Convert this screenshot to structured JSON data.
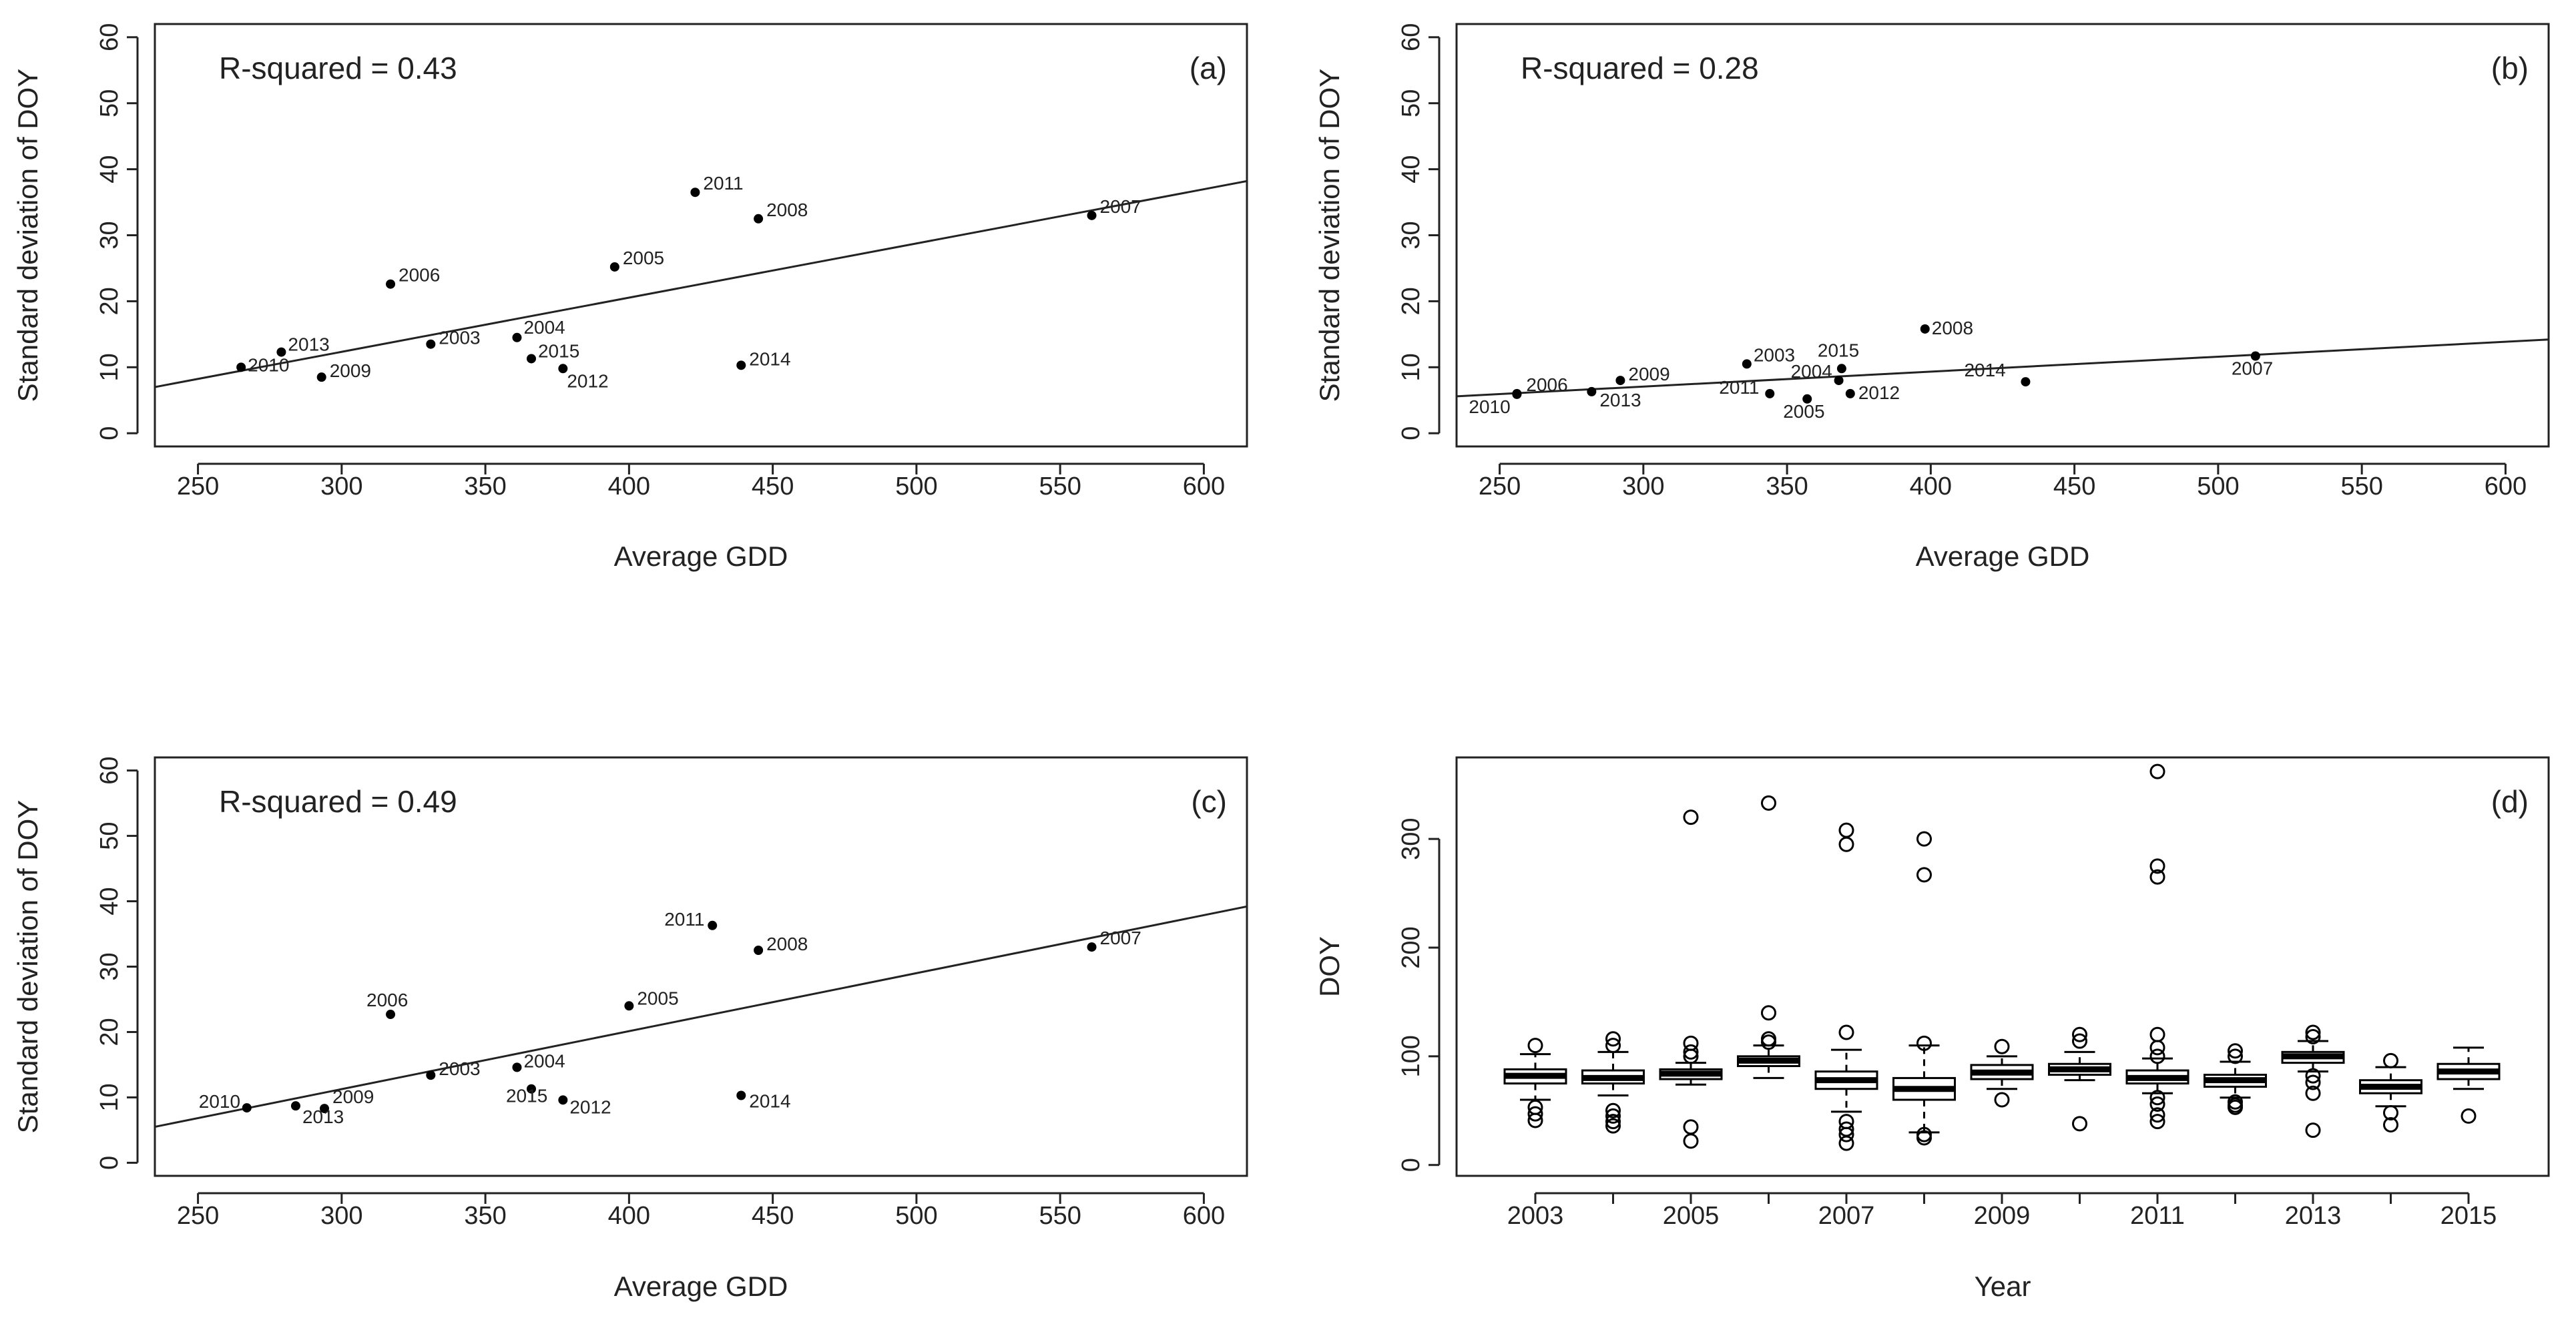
{
  "chart_data": [
    {
      "type": "scatter",
      "panel": "(a)",
      "r_squared": "R-squared = 0.43",
      "xlabel": "Average GDD",
      "ylabel": "Standard deviation of DOY",
      "xlim": [
        235,
        615
      ],
      "ylim": [
        -2,
        62
      ],
      "xticks": [
        250,
        300,
        350,
        400,
        450,
        500,
        550,
        600
      ],
      "yticks": [
        0,
        10,
        20,
        30,
        40,
        50,
        60
      ],
      "points": [
        {
          "label": "2003",
          "x": 331,
          "y": 13.5
        },
        {
          "label": "2004",
          "x": 361,
          "y": 14.5
        },
        {
          "label": "2005",
          "x": 395,
          "y": 25.2
        },
        {
          "label": "2006",
          "x": 317,
          "y": 22.6
        },
        {
          "label": "2007",
          "x": 561,
          "y": 33.0
        },
        {
          "label": "2008",
          "x": 445,
          "y": 32.5
        },
        {
          "label": "2009",
          "x": 293,
          "y": 8.5
        },
        {
          "label": "2010",
          "x": 265,
          "y": 10.0
        },
        {
          "label": "2011",
          "x": 423,
          "y": 36.5
        },
        {
          "label": "2012",
          "x": 377,
          "y": 9.8
        },
        {
          "label": "2013",
          "x": 279,
          "y": 12.3
        },
        {
          "label": "2014",
          "x": 439,
          "y": 10.3
        },
        {
          "label": "2015",
          "x": 366,
          "y": 11.3
        }
      ],
      "regression": {
        "x": [
          235,
          615
        ],
        "y": [
          7.0,
          38.2
        ]
      }
    },
    {
      "type": "scatter",
      "panel": "(b)",
      "r_squared": "R-squared = 0.28",
      "xlabel": "Average GDD",
      "ylabel": "Standard deviation of DOY",
      "xlim": [
        235,
        615
      ],
      "ylim": [
        -2,
        62
      ],
      "xticks": [
        250,
        300,
        350,
        400,
        450,
        500,
        550,
        600
      ],
      "yticks": [
        0,
        10,
        20,
        30,
        40,
        50,
        60
      ],
      "points": [
        {
          "label": "2003",
          "x": 336,
          "y": 10.5
        },
        {
          "label": "2004",
          "x": 368,
          "y": 8.0
        },
        {
          "label": "2005",
          "x": 357,
          "y": 5.2
        },
        {
          "label": "2006",
          "x": 256,
          "y": 6.0
        },
        {
          "label": "2007",
          "x": 513,
          "y": 11.7
        },
        {
          "label": "2008",
          "x": 398,
          "y": 15.8
        },
        {
          "label": "2009",
          "x": 292,
          "y": 8.0
        },
        {
          "label": "2010",
          "x": 256,
          "y": 5.9
        },
        {
          "label": "2011",
          "x": 344,
          "y": 6.0
        },
        {
          "label": "2012",
          "x": 372,
          "y": 6.0
        },
        {
          "label": "2013",
          "x": 282,
          "y": 6.3
        },
        {
          "label": "2014",
          "x": 433,
          "y": 7.8
        },
        {
          "label": "2015",
          "x": 369,
          "y": 9.8
        }
      ],
      "regression": {
        "x": [
          235,
          615
        ],
        "y": [
          5.6,
          14.2
        ]
      }
    },
    {
      "type": "scatter",
      "panel": "(c)",
      "r_squared": "R-squared = 0.49",
      "xlabel": "Average GDD",
      "ylabel": "Standard deviation of DOY",
      "xlim": [
        235,
        615
      ],
      "ylim": [
        -2,
        62
      ],
      "xticks": [
        250,
        300,
        350,
        400,
        450,
        500,
        550,
        600
      ],
      "yticks": [
        0,
        10,
        20,
        30,
        40,
        50,
        60
      ],
      "points": [
        {
          "label": "2003",
          "x": 331,
          "y": 13.4
        },
        {
          "label": "2004",
          "x": 361,
          "y": 14.6
        },
        {
          "label": "2005",
          "x": 400,
          "y": 24.0
        },
        {
          "label": "2006",
          "x": 317,
          "y": 22.7
        },
        {
          "label": "2007",
          "x": 561,
          "y": 33.0
        },
        {
          "label": "2008",
          "x": 445,
          "y": 32.5
        },
        {
          "label": "2009",
          "x": 294,
          "y": 8.3
        },
        {
          "label": "2010",
          "x": 267,
          "y": 8.4
        },
        {
          "label": "2011",
          "x": 429,
          "y": 36.3
        },
        {
          "label": "2012",
          "x": 377,
          "y": 9.6
        },
        {
          "label": "2013",
          "x": 284,
          "y": 8.7
        },
        {
          "label": "2014",
          "x": 439,
          "y": 10.3
        },
        {
          "label": "2015",
          "x": 366,
          "y": 11.3
        }
      ],
      "regression": {
        "x": [
          235,
          615
        ],
        "y": [
          5.5,
          39.2
        ]
      }
    },
    {
      "type": "box",
      "panel": "(d)",
      "xlabel": "Year",
      "ylabel": "DOY",
      "ylim": [
        -10,
        375
      ],
      "yticks": [
        0,
        100,
        200,
        300
      ],
      "xtick_labels": [
        "2003",
        "2005",
        "2007",
        "2009",
        "2011",
        "2013",
        "2015"
      ],
      "boxes": [
        {
          "year": "2003",
          "min": 60,
          "q1": 75,
          "median": 82,
          "q3": 88,
          "max": 102,
          "outliers": [
            110,
            53,
            47,
            41
          ]
        },
        {
          "year": "2004",
          "min": 64,
          "q1": 75,
          "median": 80,
          "q3": 87,
          "max": 104,
          "outliers": [
            116,
            110,
            50,
            45,
            40,
            36
          ]
        },
        {
          "year": "2005",
          "min": 74,
          "q1": 79,
          "median": 84,
          "q3": 88,
          "max": 94,
          "outliers": [
            320,
            112,
            104,
            100,
            35,
            22
          ]
        },
        {
          "year": "2006",
          "min": 80,
          "q1": 91,
          "median": 96,
          "q3": 100,
          "max": 110,
          "outliers": [
            333,
            140,
            116,
            113
          ]
        },
        {
          "year": "2007",
          "min": 49,
          "q1": 70,
          "median": 78,
          "q3": 86,
          "max": 106,
          "outliers": [
            308,
            295,
            122,
            40,
            33,
            28,
            20
          ]
        },
        {
          "year": "2008",
          "min": 30,
          "q1": 60,
          "median": 70,
          "q3": 80,
          "max": 110,
          "outliers": [
            300,
            267,
            112,
            28,
            25
          ]
        },
        {
          "year": "2009",
          "min": 70,
          "q1": 79,
          "median": 85,
          "q3": 92,
          "max": 100,
          "outliers": [
            109,
            60
          ]
        },
        {
          "year": "2010",
          "min": 78,
          "q1": 83,
          "median": 88,
          "q3": 93,
          "max": 104,
          "outliers": [
            120,
            114,
            38
          ]
        },
        {
          "year": "2011",
          "min": 66,
          "q1": 75,
          "median": 80,
          "q3": 87,
          "max": 98,
          "outliers": [
            362,
            275,
            265,
            120,
            108,
            100,
            62,
            56,
            46,
            40
          ]
        },
        {
          "year": "2012",
          "min": 62,
          "q1": 72,
          "median": 78,
          "q3": 83,
          "max": 95,
          "outliers": [
            105,
            100,
            58,
            55,
            53
          ]
        },
        {
          "year": "2013",
          "min": 86,
          "q1": 94,
          "median": 100,
          "q3": 104,
          "max": 114,
          "outliers": [
            122,
            118,
            82,
            76,
            66,
            32
          ]
        },
        {
          "year": "2014",
          "min": 54,
          "q1": 66,
          "median": 72,
          "q3": 78,
          "max": 90,
          "outliers": [
            96,
            48,
            37
          ]
        },
        {
          "year": "2015",
          "min": 70,
          "q1": 79,
          "median": 86,
          "q3": 93,
          "max": 108,
          "outliers": [
            45
          ]
        }
      ]
    }
  ]
}
